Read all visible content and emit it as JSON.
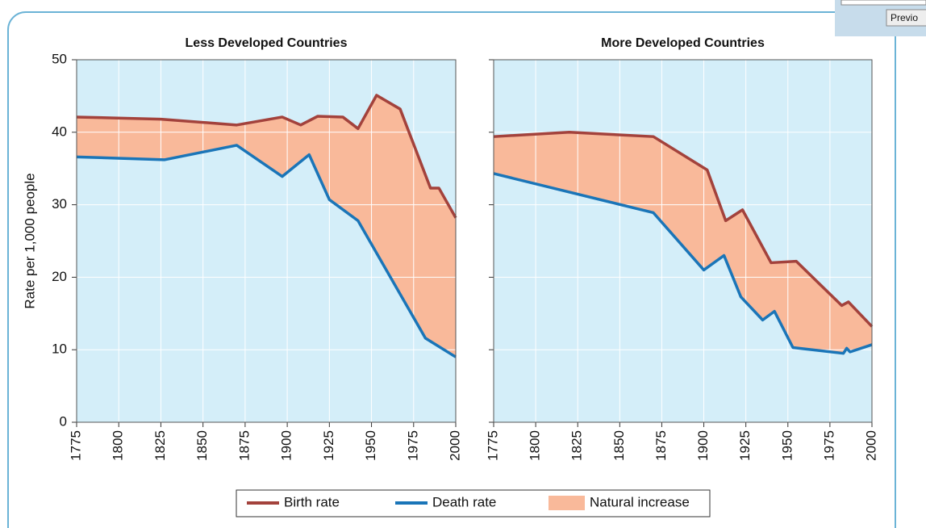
{
  "toolbar": {
    "button": "Previo"
  },
  "chart_data": [
    {
      "type": "line",
      "title": "Less Developed Countries",
      "ylabel": "Rate per 1,000 people",
      "xlim": [
        1775,
        2000
      ],
      "xticks": [
        1775,
        1800,
        1825,
        1850,
        1875,
        1900,
        1925,
        1950,
        1975,
        2000
      ],
      "ylim": [
        0,
        50
      ],
      "yticks": [
        0,
        10,
        20,
        30,
        40,
        50
      ],
      "show_ytick_labels": true,
      "grid": true,
      "background": "#d4eef9",
      "fill_between": {
        "name": "Natural increase",
        "color": "#f9b99a"
      },
      "series": [
        {
          "name": "Birth rate",
          "color": "#a3423c",
          "x": [
            1775,
            1825,
            1870,
            1897,
            1908,
            1918,
            1933,
            1942,
            1953,
            1967,
            1985,
            1990,
            2000
          ],
          "values": [
            42.1,
            41.8,
            41,
            42.1,
            41,
            42.2,
            42.1,
            40.5,
            45.1,
            43.2,
            32.3,
            32.3,
            28.2
          ]
        },
        {
          "name": "Death rate",
          "color": "#1a75b8",
          "x": [
            1775,
            1827,
            1870,
            1897,
            1913,
            1925,
            1942,
            1982,
            2000
          ],
          "values": [
            36.6,
            36.2,
            38.2,
            33.9,
            36.9,
            30.7,
            27.8,
            11.6,
            9
          ]
        }
      ]
    },
    {
      "type": "line",
      "title": "More Developed Countries",
      "xlim": [
        1775,
        2000
      ],
      "xticks": [
        1775,
        1800,
        1825,
        1850,
        1875,
        1900,
        1925,
        1950,
        1975,
        2000
      ],
      "ylim": [
        0,
        50
      ],
      "yticks": [
        0,
        10,
        20,
        30,
        40,
        50
      ],
      "show_ytick_labels": false,
      "grid": true,
      "background": "#d4eef9",
      "fill_between": {
        "color": "#f9b99a"
      },
      "series": [
        {
          "color": "#a3423c",
          "x": [
            1775,
            1820,
            1870,
            1902,
            1913,
            1923,
            1940,
            1955,
            1982,
            1986,
            2000
          ],
          "values": [
            39.4,
            40,
            39.4,
            34.8,
            27.8,
            29.3,
            22,
            22.2,
            16.1,
            16.6,
            13.2
          ]
        },
        {
          "color": "#1a75b8",
          "x": [
            1775,
            1870,
            1900,
            1912,
            1922,
            1935,
            1942,
            1953,
            1983,
            1985,
            1987,
            2000
          ],
          "values": [
            34.3,
            28.9,
            21,
            23,
            17.3,
            14.1,
            15.3,
            10.3,
            9.5,
            10.2,
            9.7,
            10.7
          ]
        }
      ]
    }
  ]
}
